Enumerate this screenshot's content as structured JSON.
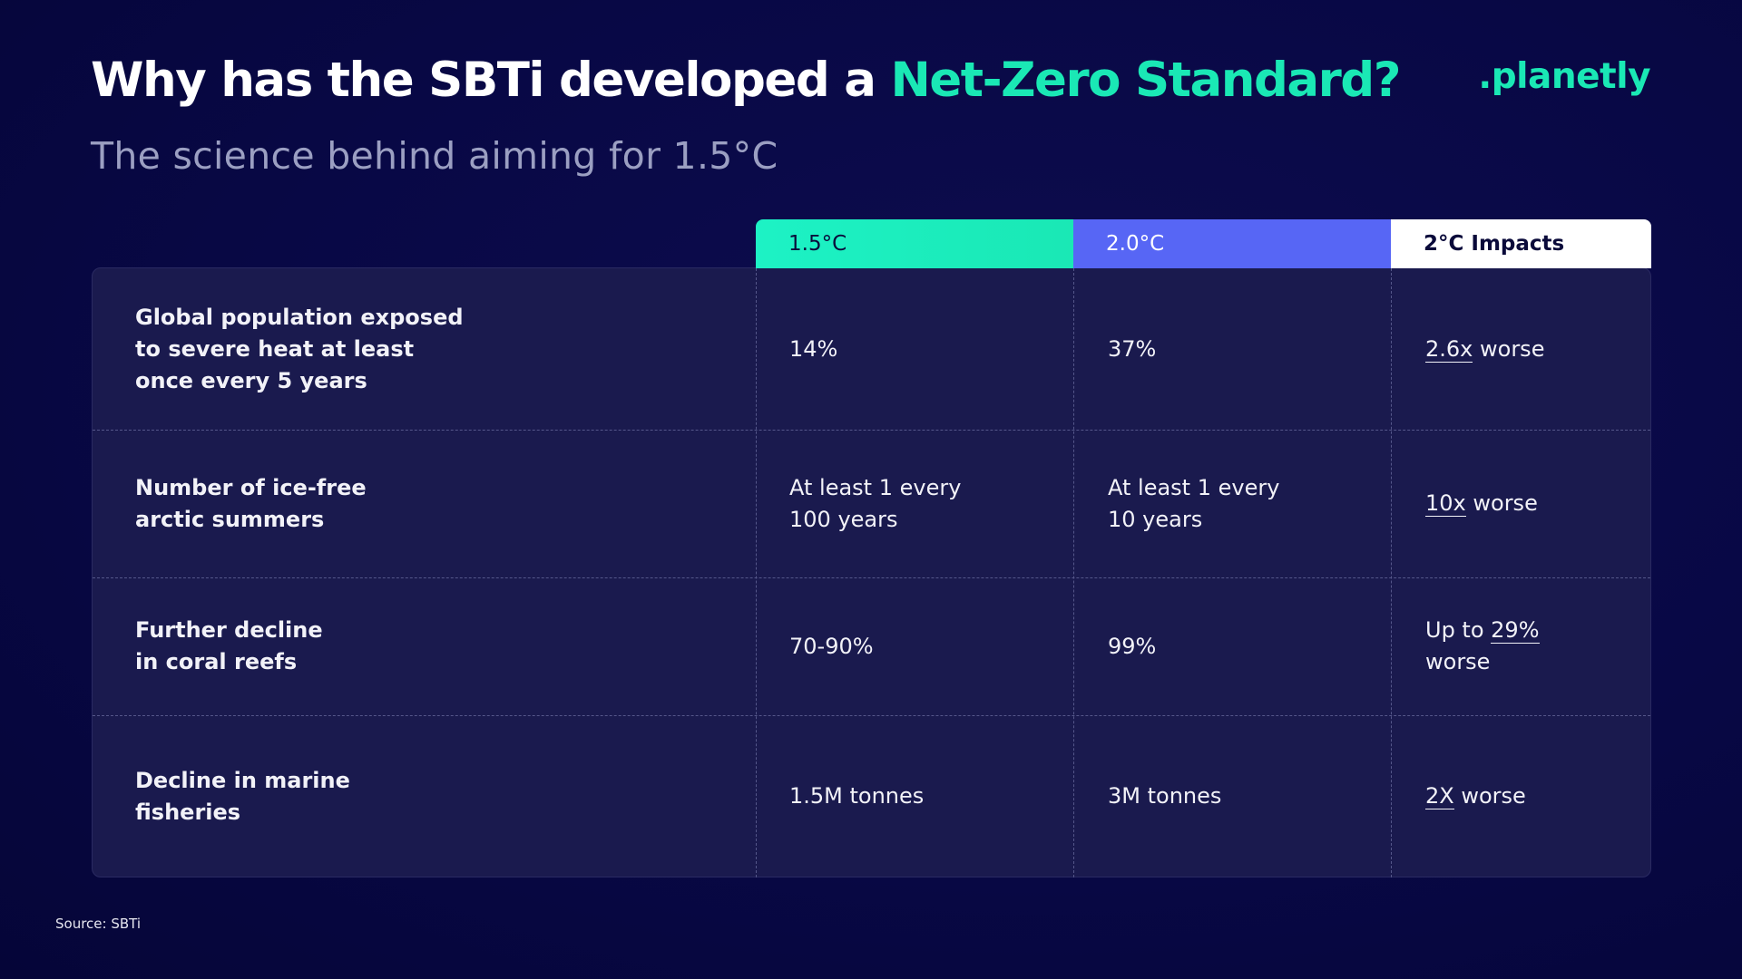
{
  "header": {
    "title_prefix": "Why has the SBTi developed a ",
    "title_highlight": "Net-Zero Standard?",
    "subtitle": "The science behind aiming for 1.5°C",
    "logo": ".planetly"
  },
  "colors": {
    "accent_green": "#1ae8b5",
    "accent_blue": "#5766f5",
    "background": "#080845",
    "card": "#1a1a4e"
  },
  "table": {
    "columns": [
      "1.5°C",
      "2.0°C",
      "2°C Impacts"
    ],
    "rows": [
      {
        "label_lines": [
          "Global population exposed",
          "to severe heat at least",
          "once every 5 years"
        ],
        "v1": [
          "14%"
        ],
        "v2": [
          "37%"
        ],
        "v3": {
          "pre": "",
          "u": "2.6x",
          "post": " worse",
          "line2": ""
        }
      },
      {
        "label_lines": [
          "Number of ice-free",
          "arctic summers"
        ],
        "v1": [
          "At least 1 every",
          "100 years"
        ],
        "v2": [
          "At least 1 every",
          "10 years"
        ],
        "v3": {
          "pre": "",
          "u": "10x",
          "post": " worse",
          "line2": ""
        }
      },
      {
        "label_lines": [
          "Further decline",
          "in coral reefs"
        ],
        "v1": [
          "70-90%"
        ],
        "v2": [
          "99%"
        ],
        "v3": {
          "pre": "Up to ",
          "u": "29%",
          "post": "",
          "line2": "worse"
        }
      },
      {
        "label_lines": [
          "Decline in marine",
          "fisheries"
        ],
        "v1": [
          "1.5M tonnes"
        ],
        "v2": [
          "3M tonnes"
        ],
        "v3": {
          "pre": "",
          "u": "2X",
          "post": " worse",
          "line2": ""
        }
      }
    ]
  },
  "footer": {
    "source": "Source: SBTi"
  }
}
